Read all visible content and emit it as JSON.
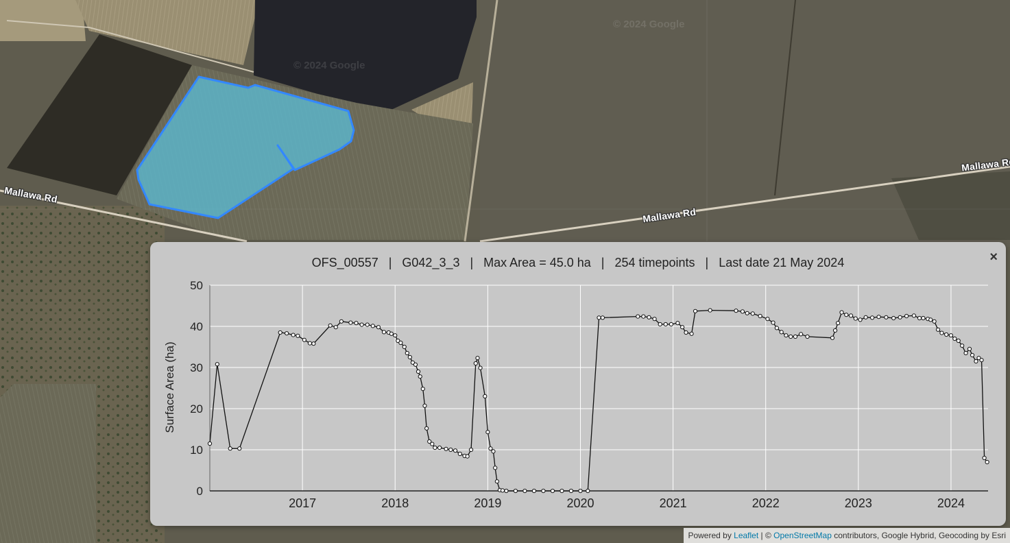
{
  "map": {
    "road_labels": [
      "Mallawa Rd",
      "Mallawa Rd",
      "Mallawa Rd"
    ],
    "watermarks": [
      "© 2024 Google",
      "© 2024 Google"
    ],
    "polygon_color": "#3388ff"
  },
  "popup": {
    "title": "OFS_00557   |   G042_3_3   |   Max Area = 45.0 ha   |   254 timepoints   |   Last date 21 May 2024",
    "close_label": "×"
  },
  "chart_data": {
    "type": "line",
    "ylabel": "Surface Area (ha)",
    "xlabel": "",
    "ylim": [
      0,
      50
    ],
    "xlim": [
      2016.0,
      2024.4
    ],
    "xticks": [
      "2017",
      "2018",
      "2019",
      "2020",
      "2021",
      "2022",
      "2023",
      "2024"
    ],
    "yticks": [
      "0",
      "10",
      "20",
      "30",
      "40",
      "50"
    ],
    "grid": true,
    "markers": "hollow circles",
    "series": [
      {
        "x": [
          2016.0,
          2016.08,
          2016.22,
          2016.32,
          2016.76,
          2016.83,
          2016.9,
          2016.95,
          2017.02,
          2017.08,
          2017.12,
          2017.3,
          2017.36,
          2017.42,
          2017.52,
          2017.58,
          2017.64,
          2017.7,
          2017.76,
          2017.82,
          2017.88,
          2017.93,
          2017.96,
          2018.0,
          2018.03,
          2018.06,
          2018.1,
          2018.13,
          2018.16,
          2018.19,
          2018.22,
          2018.25,
          2018.27,
          2018.3,
          2018.32,
          2018.34,
          2018.37,
          2018.4,
          2018.43,
          2018.48,
          2018.55,
          2018.6,
          2018.65,
          2018.7,
          2018.75,
          2018.78,
          2018.82,
          2018.87,
          2018.89,
          2018.92,
          2018.97,
          2019.0,
          2019.03,
          2019.06,
          2019.08,
          2019.1,
          2019.13,
          2019.16,
          2019.2,
          2019.3,
          2019.4,
          2019.5,
          2019.6,
          2019.7,
          2019.8,
          2019.9,
          2020.0,
          2020.08,
          2020.2,
          2020.24,
          2020.62,
          2020.68,
          2020.74,
          2020.8,
          2020.86,
          2020.92,
          2020.98,
          2021.05,
          2021.1,
          2021.14,
          2021.2,
          2021.24,
          2021.4,
          2021.68,
          2021.75,
          2021.8,
          2021.86,
          2021.94,
          2022.02,
          2022.08,
          2022.12,
          2022.17,
          2022.22,
          2022.27,
          2022.32,
          2022.38,
          2022.45,
          2022.72,
          2022.75,
          2022.78,
          2022.82,
          2022.87,
          2022.92,
          2022.97,
          2023.02,
          2023.08,
          2023.15,
          2023.22,
          2023.3,
          2023.38,
          2023.45,
          2023.52,
          2023.6,
          2023.66,
          2023.7,
          2023.75,
          2023.78,
          2023.82,
          2023.86,
          2023.9,
          2023.95,
          2024.0,
          2024.04,
          2024.08,
          2024.12,
          2024.16,
          2024.2,
          2024.23,
          2024.27,
          2024.3,
          2024.33,
          2024.36,
          2024.39
        ],
        "y": [
          11.5,
          30.8,
          10.3,
          10.3,
          38.5,
          38.3,
          37.9,
          37.7,
          36.7,
          35.9,
          35.8,
          40.2,
          39.8,
          41.2,
          40.9,
          40.8,
          40.4,
          40.4,
          40.1,
          39.8,
          38.6,
          38.5,
          38.2,
          37.8,
          36.5,
          36.0,
          35.0,
          33.5,
          32.5,
          31.2,
          30.7,
          29.0,
          27.8,
          24.8,
          20.7,
          15.2,
          12.0,
          11.4,
          10.5,
          10.5,
          10.2,
          10.0,
          9.8,
          9.0,
          8.5,
          8.4,
          10.0,
          31.0,
          32.3,
          29.9,
          23.0,
          14.3,
          10.3,
          9.6,
          5.6,
          2.3,
          0.2,
          0.1,
          0.0,
          0.0,
          0.0,
          0.0,
          0.0,
          0.0,
          0.0,
          0.0,
          0.0,
          0.0,
          42.1,
          42.1,
          42.4,
          42.4,
          42.2,
          41.8,
          40.5,
          40.5,
          40.5,
          40.8,
          39.8,
          38.5,
          38.2,
          43.7,
          43.9,
          43.8,
          43.6,
          43.2,
          43.1,
          42.5,
          41.8,
          40.9,
          39.6,
          38.6,
          37.8,
          37.5,
          37.5,
          38.1,
          37.5,
          37.2,
          39.0,
          40.8,
          43.4,
          42.8,
          42.6,
          41.9,
          41.6,
          42.2,
          42.1,
          42.3,
          42.2,
          42.0,
          42.2,
          42.5,
          42.6,
          42.0,
          42.0,
          41.8,
          41.6,
          41.2,
          39.2,
          38.4,
          38.0,
          37.8,
          37.0,
          36.5,
          35.3,
          33.5,
          34.5,
          33.0,
          31.5,
          32.3,
          31.8,
          8.0,
          7.0
        ]
      }
    ]
  },
  "attribution": {
    "prefix": "Powered by ",
    "leaflet": "Leaflet",
    "sep": " | © ",
    "osm": "OpenStreetMap",
    "suffix": " contributors, Google Hybrid, Geocoding by Esri"
  }
}
